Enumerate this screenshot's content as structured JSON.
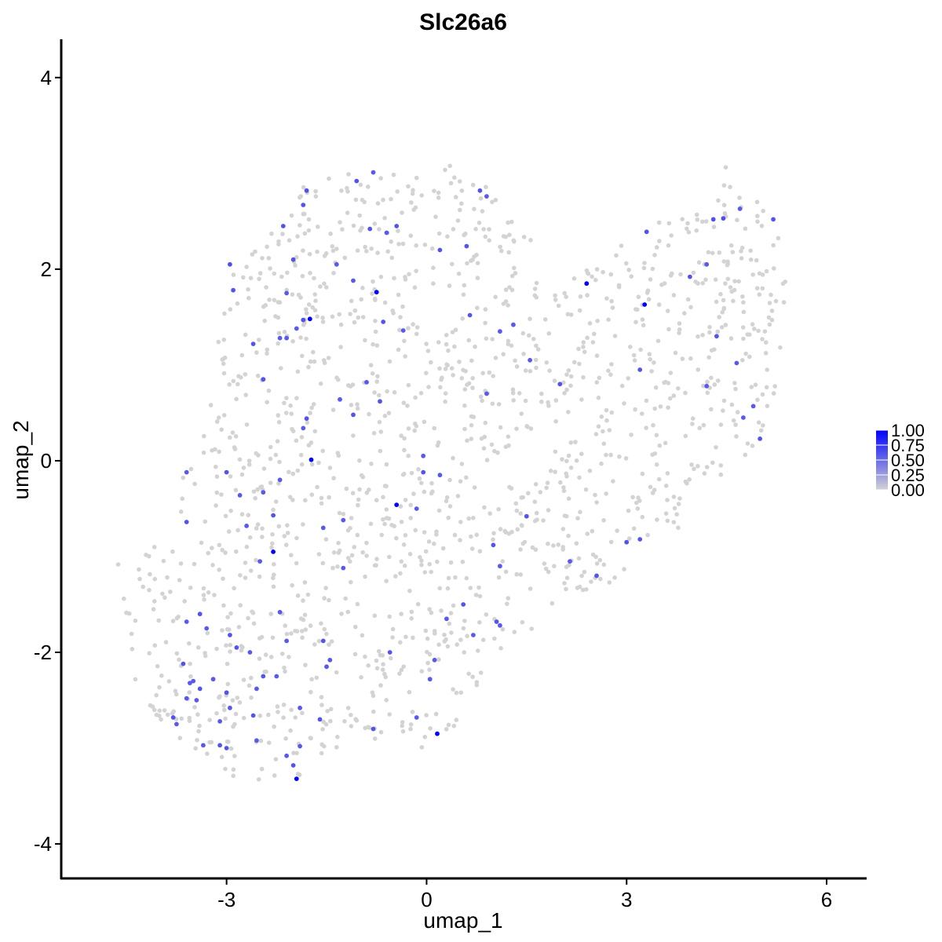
{
  "chart_data": {
    "type": "scatter",
    "title": "Slc26a6",
    "xlabel": "umap_1",
    "ylabel": "umap_2",
    "xlim": [
      -5.48,
      6.6
    ],
    "ylim": [
      -4.36,
      4.4
    ],
    "xticks": [
      -3,
      0,
      3,
      6
    ],
    "yticks": [
      -4,
      -2,
      0,
      2,
      4
    ],
    "xtick_labels": [
      "-3",
      "0",
      "3",
      "6"
    ],
    "ytick_labels": [
      "-4",
      "-2",
      "0",
      "2",
      "4"
    ],
    "grid": false,
    "legend": {
      "position": "right",
      "low_color": "#d3d3d3",
      "high_color": "#0000ff",
      "ticks": [
        1.0,
        0.75,
        0.5,
        0.25,
        0.0
      ],
      "labels": [
        "1.00",
        "0.75",
        "0.50",
        "0.25",
        "0.00"
      ]
    },
    "background_cell_count": 1500,
    "region_x": [
      -4.8,
      5.4
    ],
    "region_y": [
      -3.5,
      3.1
    ],
    "expressing_cells": [
      {
        "x": -1.75,
        "y": 1.48,
        "v": 1.0
      },
      {
        "x": -0.75,
        "y": 1.76,
        "v": 1.0
      },
      {
        "x": 2.4,
        "y": 1.85,
        "v": 1.0
      },
      {
        "x": 3.27,
        "y": 1.63,
        "v": 1.0
      },
      {
        "x": -1.73,
        "y": 0.01,
        "v": 1.0
      },
      {
        "x": -0.45,
        "y": -0.46,
        "v": 1.0
      },
      {
        "x": -2.3,
        "y": -0.95,
        "v": 1.0
      },
      {
        "x": 0.16,
        "y": -2.85,
        "v": 1.0
      },
      {
        "x": -1.95,
        "y": -3.32,
        "v": 1.0
      },
      {
        "x": -2.95,
        "y": 2.05,
        "v": 0.62
      },
      {
        "x": -2.9,
        "y": 1.78,
        "v": 0.6
      },
      {
        "x": -2.1,
        "y": 1.75,
        "v": 0.58
      },
      {
        "x": -2.0,
        "y": 2.1,
        "v": 0.6
      },
      {
        "x": -1.85,
        "y": 2.67,
        "v": 0.6
      },
      {
        "x": -1.8,
        "y": 2.82,
        "v": 0.62
      },
      {
        "x": -1.05,
        "y": 2.92,
        "v": 0.6
      },
      {
        "x": -0.8,
        "y": 3.01,
        "v": 0.58
      },
      {
        "x": -0.85,
        "y": 2.42,
        "v": 0.6
      },
      {
        "x": -0.6,
        "y": 2.38,
        "v": 0.58
      },
      {
        "x": -0.45,
        "y": 2.45,
        "v": 0.6
      },
      {
        "x": 0.8,
        "y": 2.82,
        "v": 0.6
      },
      {
        "x": 0.9,
        "y": 2.76,
        "v": 0.58
      },
      {
        "x": 0.2,
        "y": 2.2,
        "v": 0.6
      },
      {
        "x": 0.6,
        "y": 2.24,
        "v": 0.6
      },
      {
        "x": -2.15,
        "y": 2.45,
        "v": 0.6
      },
      {
        "x": -1.35,
        "y": 2.05,
        "v": 0.58
      },
      {
        "x": -1.1,
        "y": 1.88,
        "v": 0.58
      },
      {
        "x": -2.6,
        "y": 1.22,
        "v": 0.6
      },
      {
        "x": -1.95,
        "y": 1.38,
        "v": 0.58
      },
      {
        "x": -1.85,
        "y": 1.47,
        "v": 0.62
      },
      {
        "x": -2.2,
        "y": 1.28,
        "v": 0.58
      },
      {
        "x": -2.1,
        "y": 1.28,
        "v": 0.58
      },
      {
        "x": -0.65,
        "y": 1.45,
        "v": 0.6
      },
      {
        "x": -0.35,
        "y": 1.36,
        "v": 0.58
      },
      {
        "x": 0.65,
        "y": 1.52,
        "v": 0.6
      },
      {
        "x": 1.3,
        "y": 1.42,
        "v": 0.58
      },
      {
        "x": 1.1,
        "y": 1.35,
        "v": 0.58
      },
      {
        "x": -2.45,
        "y": 0.85,
        "v": 0.6
      },
      {
        "x": -0.9,
        "y": 0.82,
        "v": 0.58
      },
      {
        "x": -1.3,
        "y": 0.64,
        "v": 0.58
      },
      {
        "x": -1.1,
        "y": 0.48,
        "v": 0.6
      },
      {
        "x": -0.7,
        "y": 0.62,
        "v": 0.6
      },
      {
        "x": -1.85,
        "y": 0.34,
        "v": 0.58
      },
      {
        "x": -1.8,
        "y": 0.44,
        "v": 0.6
      },
      {
        "x": 0.9,
        "y": 0.7,
        "v": 0.58
      },
      {
        "x": 1.55,
        "y": 1.05,
        "v": 0.58
      },
      {
        "x": 2.0,
        "y": 0.8,
        "v": 0.6
      },
      {
        "x": 3.2,
        "y": 0.95,
        "v": 0.6
      },
      {
        "x": 3.3,
        "y": 2.39,
        "v": 0.6
      },
      {
        "x": 3.95,
        "y": 1.92,
        "v": 0.6
      },
      {
        "x": 4.2,
        "y": 2.05,
        "v": 0.58
      },
      {
        "x": 4.35,
        "y": 1.3,
        "v": 0.6
      },
      {
        "x": 4.2,
        "y": 0.78,
        "v": 0.58
      },
      {
        "x": 4.3,
        "y": 2.52,
        "v": 0.62
      },
      {
        "x": 4.45,
        "y": 2.53,
        "v": 0.62
      },
      {
        "x": 4.7,
        "y": 2.63,
        "v": 0.58
      },
      {
        "x": 5.2,
        "y": 2.52,
        "v": 0.6
      },
      {
        "x": 4.65,
        "y": 1.02,
        "v": 0.58
      },
      {
        "x": 4.75,
        "y": 0.45,
        "v": 0.58
      },
      {
        "x": 4.9,
        "y": 0.57,
        "v": 0.58
      },
      {
        "x": 5.0,
        "y": 0.23,
        "v": 0.6
      },
      {
        "x": -3.0,
        "y": -0.12,
        "v": 0.6
      },
      {
        "x": -3.6,
        "y": -0.12,
        "v": 0.58
      },
      {
        "x": -2.8,
        "y": -0.36,
        "v": 0.58
      },
      {
        "x": -2.45,
        "y": -0.33,
        "v": 0.58
      },
      {
        "x": -2.3,
        "y": -0.57,
        "v": 0.6
      },
      {
        "x": -2.2,
        "y": -0.2,
        "v": 0.58
      },
      {
        "x": -3.6,
        "y": -0.64,
        "v": 0.6
      },
      {
        "x": -2.7,
        "y": -0.68,
        "v": 0.58
      },
      {
        "x": -1.55,
        "y": -0.7,
        "v": 0.58
      },
      {
        "x": -1.25,
        "y": -0.62,
        "v": 0.58
      },
      {
        "x": -0.15,
        "y": -0.5,
        "v": 0.58
      },
      {
        "x": -0.05,
        "y": -0.12,
        "v": 0.6
      },
      {
        "x": 0.2,
        "y": -0.15,
        "v": 0.58
      },
      {
        "x": -0.05,
        "y": 0.05,
        "v": 0.58
      },
      {
        "x": 1.5,
        "y": -0.58,
        "v": 0.6
      },
      {
        "x": -2.5,
        "y": -1.05,
        "v": 0.58
      },
      {
        "x": -1.25,
        "y": -1.12,
        "v": 0.58
      },
      {
        "x": 1.0,
        "y": -0.88,
        "v": 0.6
      },
      {
        "x": 1.1,
        "y": -1.1,
        "v": 0.58
      },
      {
        "x": 2.15,
        "y": -1.05,
        "v": 0.58
      },
      {
        "x": 2.55,
        "y": -1.2,
        "v": 0.6
      },
      {
        "x": 3.0,
        "y": -0.85,
        "v": 0.6
      },
      {
        "x": 3.2,
        "y": -0.82,
        "v": 0.6
      },
      {
        "x": -3.4,
        "y": -1.6,
        "v": 0.6
      },
      {
        "x": -3.6,
        "y": -1.68,
        "v": 0.58
      },
      {
        "x": -3.3,
        "y": -1.75,
        "v": 0.58
      },
      {
        "x": -2.95,
        "y": -1.82,
        "v": 0.6
      },
      {
        "x": -2.2,
        "y": -1.58,
        "v": 0.58
      },
      {
        "x": -2.1,
        "y": -1.88,
        "v": 0.58
      },
      {
        "x": -2.85,
        "y": -1.95,
        "v": 0.6
      },
      {
        "x": -2.65,
        "y": -2.0,
        "v": 0.58
      },
      {
        "x": -1.55,
        "y": -1.88,
        "v": 0.6
      },
      {
        "x": -1.45,
        "y": -2.08,
        "v": 0.58
      },
      {
        "x": -1.5,
        "y": -2.15,
        "v": 0.58
      },
      {
        "x": -0.55,
        "y": -2.0,
        "v": 0.6
      },
      {
        "x": 0.12,
        "y": -2.08,
        "v": 0.58
      },
      {
        "x": 0.3,
        "y": -1.65,
        "v": 0.58
      },
      {
        "x": 0.55,
        "y": -1.5,
        "v": 0.6
      },
      {
        "x": 1.05,
        "y": -1.68,
        "v": 0.6
      },
      {
        "x": 1.1,
        "y": -1.72,
        "v": 0.58
      },
      {
        "x": 0.7,
        "y": -1.82,
        "v": 0.58
      },
      {
        "x": -2.45,
        "y": -2.25,
        "v": 0.6
      },
      {
        "x": -2.25,
        "y": -2.25,
        "v": 0.58
      },
      {
        "x": -2.55,
        "y": -2.38,
        "v": 0.58
      },
      {
        "x": -3.65,
        "y": -2.12,
        "v": 0.6
      },
      {
        "x": -3.55,
        "y": -2.32,
        "v": 0.58
      },
      {
        "x": -3.5,
        "y": -2.3,
        "v": 0.58
      },
      {
        "x": -3.4,
        "y": -2.38,
        "v": 0.6
      },
      {
        "x": -3.6,
        "y": -2.48,
        "v": 0.58
      },
      {
        "x": -3.45,
        "y": -2.5,
        "v": 0.58
      },
      {
        "x": -3.2,
        "y": -2.28,
        "v": 0.58
      },
      {
        "x": -3.0,
        "y": -2.42,
        "v": 0.6
      },
      {
        "x": -2.95,
        "y": -2.58,
        "v": 0.58
      },
      {
        "x": -3.8,
        "y": -2.68,
        "v": 0.6
      },
      {
        "x": -3.75,
        "y": -2.75,
        "v": 0.58
      },
      {
        "x": -3.1,
        "y": -2.72,
        "v": 0.58
      },
      {
        "x": -3.1,
        "y": -2.97,
        "v": 0.6
      },
      {
        "x": -3.0,
        "y": -3.0,
        "v": 0.6
      },
      {
        "x": -3.35,
        "y": -2.97,
        "v": 0.58
      },
      {
        "x": -2.6,
        "y": -2.66,
        "v": 0.6
      },
      {
        "x": -2.55,
        "y": -2.92,
        "v": 0.58
      },
      {
        "x": -2.1,
        "y": -3.08,
        "v": 0.58
      },
      {
        "x": -2.0,
        "y": -3.18,
        "v": 0.6
      },
      {
        "x": -1.9,
        "y": -2.58,
        "v": 0.58
      },
      {
        "x": -1.6,
        "y": -2.7,
        "v": 0.6
      },
      {
        "x": -1.9,
        "y": -2.98,
        "v": 0.58
      },
      {
        "x": -0.8,
        "y": -2.8,
        "v": 0.6
      },
      {
        "x": 0.05,
        "y": -2.28,
        "v": 0.58
      },
      {
        "x": -0.15,
        "y": -2.68,
        "v": 0.58
      }
    ]
  }
}
